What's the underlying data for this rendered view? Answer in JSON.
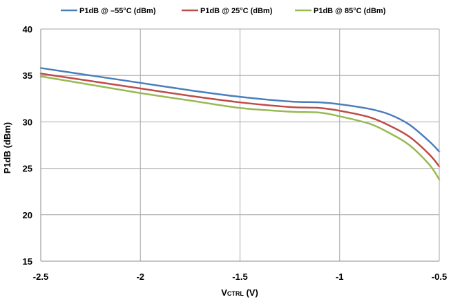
{
  "chart_data": {
    "type": "line",
    "xlabel_main": "V",
    "xlabel_sub": "CTRL",
    "xlabel_tail": " (V)",
    "ylabel": "P1dB (dBm)",
    "xlim": [
      -2.5,
      -0.5
    ],
    "ylim": [
      15,
      40
    ],
    "x_ticks": [
      -2.5,
      -2,
      -1.5,
      -1,
      -0.5
    ],
    "x_tick_labels": [
      "-2.5",
      "-2",
      "-1.5",
      "-1",
      "-0.5"
    ],
    "y_ticks": [
      15,
      20,
      25,
      30,
      35,
      40
    ],
    "y_tick_labels": [
      "15",
      "20",
      "25",
      "30",
      "35",
      "40"
    ],
    "grid": true,
    "legend_position": "top",
    "series": [
      {
        "name": "P1dB @ –55°C (dBm)",
        "color": "#4a7ebb",
        "points": [
          [
            -2.5,
            35.8
          ],
          [
            -2.25,
            35.0
          ],
          [
            -2.0,
            34.2
          ],
          [
            -1.75,
            33.4
          ],
          [
            -1.5,
            32.7
          ],
          [
            -1.25,
            32.2
          ],
          [
            -1.1,
            32.1
          ],
          [
            -1.0,
            31.9
          ],
          [
            -0.85,
            31.4
          ],
          [
            -0.75,
            30.8
          ],
          [
            -0.65,
            29.7
          ],
          [
            -0.55,
            27.9
          ],
          [
            -0.5,
            26.8
          ]
        ]
      },
      {
        "name": "P1dB @ 25°C (dBm)",
        "color": "#be4b48",
        "points": [
          [
            -2.5,
            35.2
          ],
          [
            -2.25,
            34.4
          ],
          [
            -2.0,
            33.6
          ],
          [
            -1.75,
            32.8
          ],
          [
            -1.5,
            32.1
          ],
          [
            -1.25,
            31.6
          ],
          [
            -1.1,
            31.5
          ],
          [
            -1.0,
            31.2
          ],
          [
            -0.85,
            30.5
          ],
          [
            -0.75,
            29.6
          ],
          [
            -0.65,
            28.4
          ],
          [
            -0.55,
            26.5
          ],
          [
            -0.5,
            25.2
          ]
        ]
      },
      {
        "name": "P1dB @ 85°C (dBm)",
        "color": "#98b954",
        "points": [
          [
            -2.5,
            34.9
          ],
          [
            -2.25,
            34.0
          ],
          [
            -2.0,
            33.1
          ],
          [
            -1.75,
            32.3
          ],
          [
            -1.5,
            31.5
          ],
          [
            -1.25,
            31.1
          ],
          [
            -1.1,
            31.0
          ],
          [
            -1.0,
            30.6
          ],
          [
            -0.85,
            29.8
          ],
          [
            -0.75,
            28.8
          ],
          [
            -0.65,
            27.5
          ],
          [
            -0.55,
            25.4
          ],
          [
            -0.5,
            23.8
          ]
        ]
      }
    ]
  }
}
